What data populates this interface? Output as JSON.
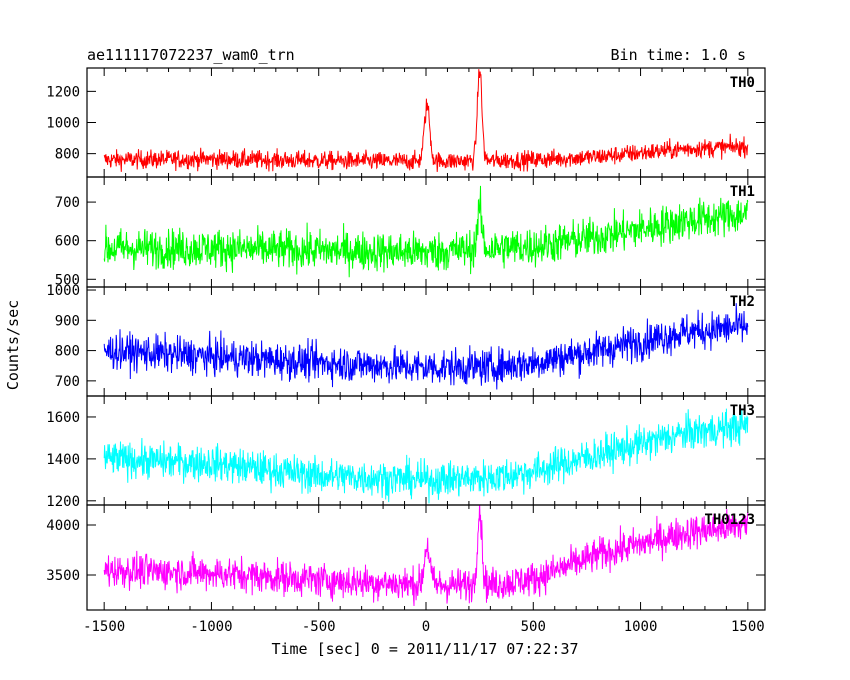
{
  "chart_data": {
    "type": "line",
    "title_left": "ae111117072237_wam0_trn",
    "title_right": "Bin time: 1.0 s",
    "xlabel": "Time [sec] 0 = 2011/11/17 07:22:37",
    "ylabel": "Counts/sec",
    "xlim": [
      -1580,
      1580
    ],
    "x_ticks": [
      -1500,
      -1000,
      -500,
      0,
      500,
      1000,
      1500
    ],
    "x_range": [
      -1500,
      1500
    ],
    "grid": false,
    "panels": [
      {
        "name": "TH0",
        "color": "#ff0000",
        "ylim": [
          650,
          1350
        ],
        "y_ticks": [
          800,
          1000,
          1200
        ],
        "baseline": [
          [
            -1500,
            760
          ],
          [
            -1000,
            765
          ],
          [
            -500,
            755
          ],
          [
            0,
            750
          ],
          [
            300,
            755
          ],
          [
            500,
            760
          ],
          [
            800,
            780
          ],
          [
            1200,
            830
          ],
          [
            1500,
            845
          ]
        ],
        "noise": 70,
        "spikes": [
          [
            5,
            1110,
            18
          ],
          [
            250,
            1340,
            15
          ]
        ]
      },
      {
        "name": "TH1",
        "color": "#00ff00",
        "ylim": [
          480,
          765
        ],
        "y_ticks": [
          500,
          600,
          700
        ],
        "baseline": [
          [
            -1500,
            580
          ],
          [
            -1000,
            580
          ],
          [
            -500,
            575
          ],
          [
            0,
            570
          ],
          [
            300,
            580
          ],
          [
            500,
            585
          ],
          [
            800,
            610
          ],
          [
            1200,
            650
          ],
          [
            1500,
            670
          ]
        ],
        "noise": 60,
        "spikes": [
          [
            250,
            680,
            15
          ]
        ]
      },
      {
        "name": "TH2",
        "color": "#0000ff",
        "ylim": [
          650,
          1010
        ],
        "y_ticks": [
          700,
          800,
          900,
          1000
        ],
        "baseline": [
          [
            -1500,
            800
          ],
          [
            -1000,
            780
          ],
          [
            -500,
            760
          ],
          [
            0,
            745
          ],
          [
            300,
            745
          ],
          [
            500,
            760
          ],
          [
            800,
            800
          ],
          [
            1200,
            860
          ],
          [
            1500,
            880
          ]
        ],
        "noise": 70,
        "spikes": []
      },
      {
        "name": "TH3",
        "color": "#00ffff",
        "ylim": [
          1180,
          1700
        ],
        "y_ticks": [
          1200,
          1400,
          1600
        ],
        "baseline": [
          [
            -1500,
            1400
          ],
          [
            -1000,
            1380
          ],
          [
            -500,
            1320
          ],
          [
            0,
            1300
          ],
          [
            300,
            1310
          ],
          [
            500,
            1340
          ],
          [
            800,
            1420
          ],
          [
            1200,
            1520
          ],
          [
            1500,
            1560
          ]
        ],
        "noise": 100,
        "spikes": []
      },
      {
        "name": "TH0123",
        "color": "#ff00ff",
        "ylim": [
          3150,
          4200
        ],
        "y_ticks": [
          3500,
          4000
        ],
        "baseline": [
          [
            -1500,
            3550
          ],
          [
            -1000,
            3520
          ],
          [
            -500,
            3450
          ],
          [
            0,
            3400
          ],
          [
            300,
            3400
          ],
          [
            500,
            3460
          ],
          [
            800,
            3700
          ],
          [
            1200,
            3920
          ],
          [
            1500,
            4000
          ]
        ],
        "noise": 200,
        "spikes": [
          [
            5,
            3800,
            18
          ],
          [
            250,
            4150,
            15
          ]
        ]
      }
    ]
  }
}
